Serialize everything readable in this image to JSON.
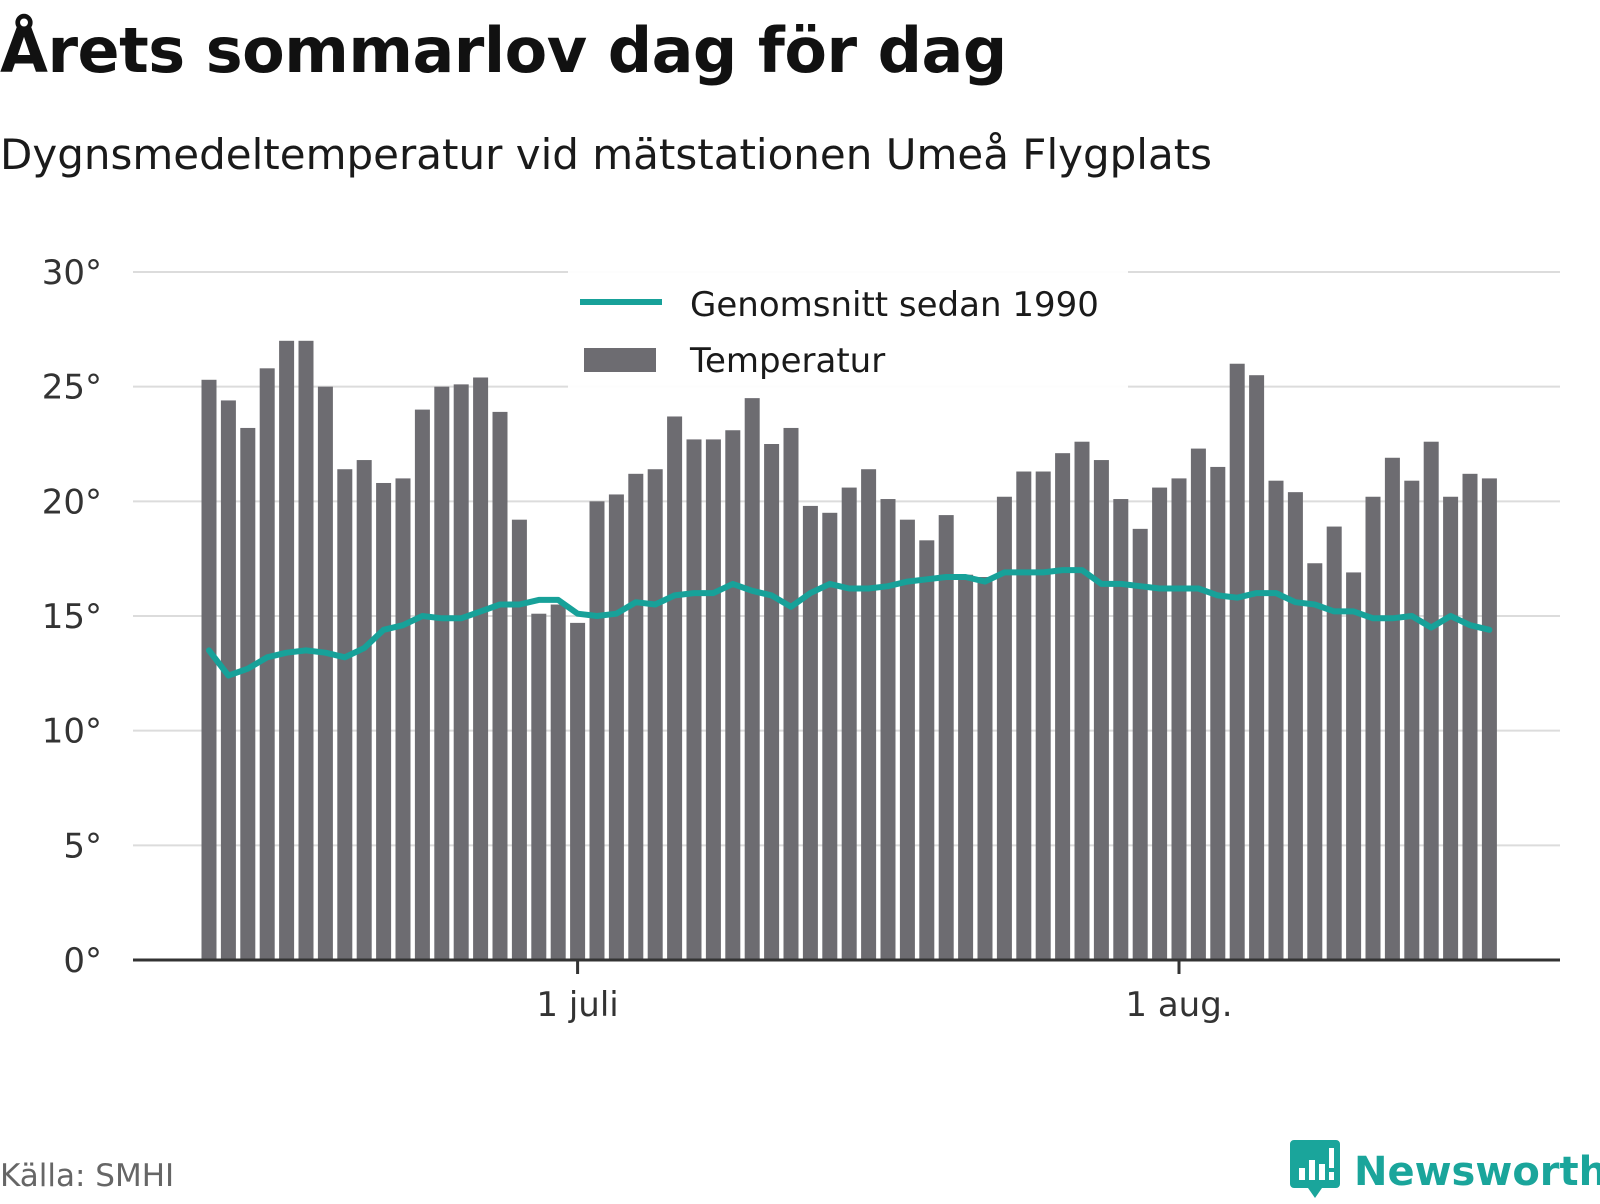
{
  "header": {
    "title": "Årets sommarlov dag för dag",
    "subtitle": "Dygnsmedeltemperatur vid mätstationen Umeå Flygplats"
  },
  "footer": {
    "source": "Källa: SMHI",
    "brand": "Newsworthy"
  },
  "colors": {
    "bar": "#6d6c71",
    "line": "#17a199",
    "grid": "#dcdcdc",
    "axis": "#333333",
    "brand": "#1aa59b"
  },
  "icons": {
    "brand_logo": "bar-chart-speech-bubble-icon"
  },
  "chart_data": {
    "type": "bar",
    "title": "Årets sommarlov dag för dag",
    "subtitle": "Dygnsmedeltemperatur vid mätstationen Umeå Flygplats",
    "ylim": [
      0,
      30
    ],
    "yticks": [
      0,
      5,
      10,
      15,
      20,
      25,
      30
    ],
    "ytick_labels": [
      "0°",
      "5°",
      "10°",
      "15°",
      "20°",
      "25°",
      "30°"
    ],
    "grid": true,
    "x_start": "2018-06-12",
    "x_end": "2018-08-17",
    "xticks": [
      {
        "date": "2018-07-01",
        "label": "1 juli"
      },
      {
        "date": "2018-08-01",
        "label": "1 aug."
      }
    ],
    "legend": {
      "placement": "top-center",
      "entries": [
        {
          "name": "Genomsnitt sedan 1990",
          "kind": "line"
        },
        {
          "name": "Temperatur",
          "kind": "bar"
        }
      ]
    },
    "series": [
      {
        "name": "Temperatur",
        "kind": "bar",
        "values": [
          25.3,
          24.4,
          23.2,
          25.8,
          27.0,
          27.0,
          25.0,
          21.4,
          21.8,
          20.8,
          21.0,
          24.0,
          25.0,
          25.1,
          25.4,
          23.9,
          19.2,
          15.1,
          15.5,
          14.7,
          20.0,
          20.3,
          21.2,
          21.4,
          23.7,
          22.7,
          22.7,
          23.1,
          24.5,
          22.5,
          23.2,
          19.8,
          19.5,
          20.6,
          21.4,
          20.1,
          19.2,
          18.3,
          19.4,
          16.8,
          16.7,
          20.2,
          21.3,
          21.3,
          22.1,
          22.6,
          21.8,
          20.1,
          18.8,
          20.6,
          21.0,
          22.3,
          21.5,
          26.0,
          25.5,
          20.9,
          20.4,
          17.3,
          18.9,
          16.9,
          20.2,
          21.9,
          20.9,
          22.6,
          20.2,
          21.2,
          21.0
        ]
      },
      {
        "name": "Genomsnitt sedan 1990",
        "kind": "line",
        "values": [
          13.5,
          12.4,
          12.7,
          13.2,
          13.4,
          13.5,
          13.4,
          13.2,
          13.6,
          14.4,
          14.6,
          15.0,
          14.9,
          14.9,
          15.2,
          15.5,
          15.5,
          15.7,
          15.7,
          15.1,
          15.0,
          15.1,
          15.6,
          15.5,
          15.9,
          16.0,
          16.0,
          16.4,
          16.1,
          15.9,
          15.4,
          16.0,
          16.4,
          16.2,
          16.2,
          16.3,
          16.5,
          16.6,
          16.7,
          16.7,
          16.5,
          16.9,
          16.9,
          16.9,
          17.0,
          17.0,
          16.4,
          16.4,
          16.3,
          16.2,
          16.2,
          16.2,
          15.9,
          15.8,
          16.0,
          16.0,
          15.6,
          15.5,
          15.2,
          15.2,
          14.9,
          14.9,
          15.0,
          14.5,
          15.0,
          14.6,
          14.4
        ]
      }
    ]
  }
}
